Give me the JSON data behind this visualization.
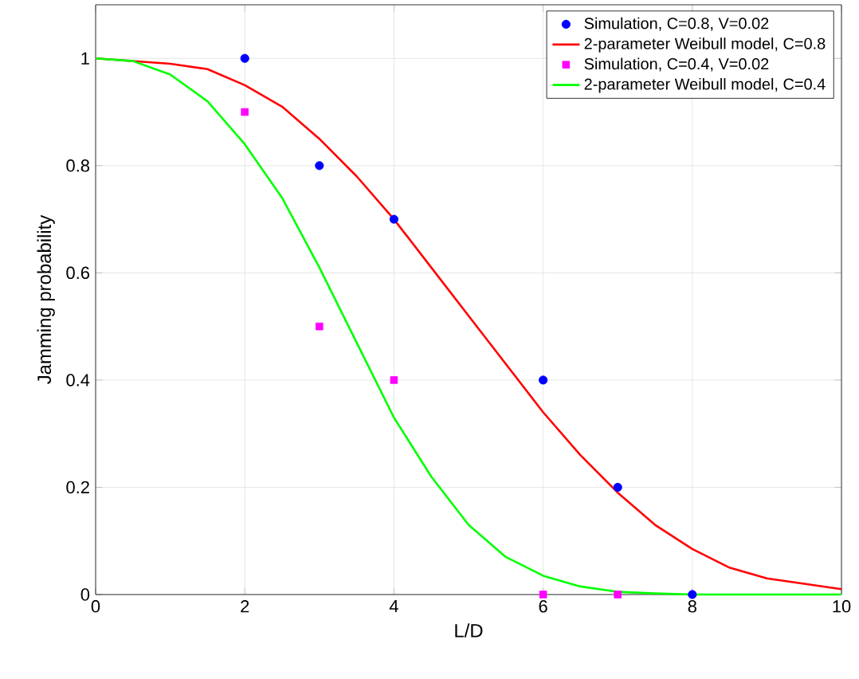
{
  "chart_data": {
    "type": "line",
    "xlabel": "L/D",
    "ylabel": "Jamming probability",
    "xlim": [
      0,
      10
    ],
    "ylim": [
      0,
      1.1
    ],
    "xticks": [
      0,
      2,
      4,
      6,
      8,
      10
    ],
    "yticks": [
      0,
      0.2,
      0.4,
      0.6,
      0.8,
      1
    ],
    "grid": true,
    "legend": "top right",
    "series": [
      {
        "name": "Simulation, C=0.8, V=0.02",
        "type": "scatter",
        "marker": "circle",
        "color": "#0000ff",
        "x": [
          2,
          3,
          4,
          6,
          7,
          8
        ],
        "values": [
          1,
          0.8,
          0.7,
          0.4,
          0.2,
          0
        ]
      },
      {
        "name": "2-parameter Weibull model, C=0.8",
        "marker": "none",
        "color": "#ff0000",
        "x": [
          0,
          1,
          1.5,
          2,
          2.5,
          3,
          3.5,
          4,
          4.5,
          5,
          5.5,
          6,
          6.5,
          7,
          7.5,
          8,
          8.5,
          9,
          9.5,
          10
        ],
        "values": [
          1,
          0.99,
          0.98,
          0.95,
          0.91,
          0.85,
          0.78,
          0.7,
          0.61,
          0.52,
          0.43,
          0.34,
          0.26,
          0.19,
          0.13,
          0.085,
          0.05,
          0.03,
          0.02,
          0.01
        ]
      },
      {
        "name": "Simulation, C=0.4, V=0.02",
        "type": "scatter",
        "marker": "square",
        "color": "#ff00ff",
        "x": [
          2,
          3,
          4,
          6,
          7
        ],
        "values": [
          0.9,
          0.5,
          0.4,
          0,
          0
        ]
      },
      {
        "name": "2-parameter Weibull model, C=0.4",
        "marker": "none",
        "color": "#00ff00",
        "x": [
          0,
          0.5,
          1,
          1.5,
          2,
          2.5,
          3,
          3.5,
          4,
          4.5,
          5,
          5.5,
          6,
          6.5,
          7,
          7.5,
          8,
          10
        ],
        "values": [
          1,
          0.995,
          0.97,
          0.92,
          0.84,
          0.74,
          0.61,
          0.47,
          0.33,
          0.22,
          0.13,
          0.07,
          0.035,
          0.015,
          0.005,
          0.002,
          0,
          0
        ]
      }
    ]
  }
}
